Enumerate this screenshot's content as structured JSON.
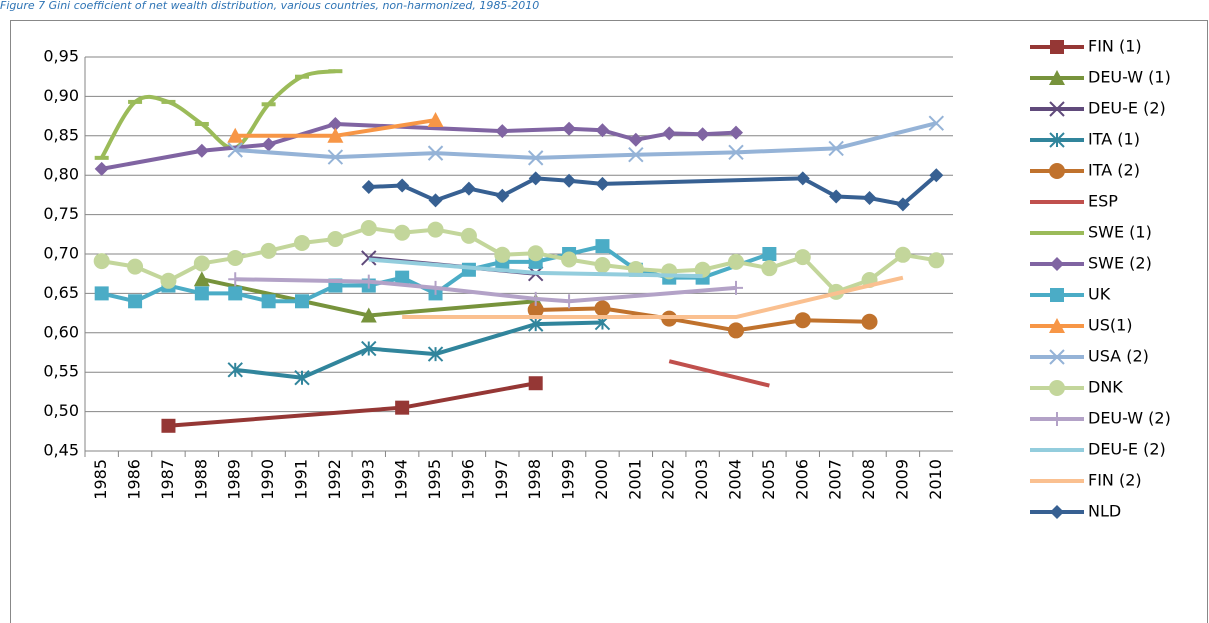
{
  "chart_data": {
    "type": "line",
    "title": "Figure 7 Gini coefficient of net wealth distribution, various countries, non-harmonized, 1985-2010",
    "xlim": [
      1984.5,
      2010.5
    ],
    "xticks": [
      1985,
      1986,
      1987,
      1988,
      1989,
      1990,
      1991,
      1992,
      1993,
      1994,
      1995,
      1996,
      1997,
      1998,
      1999,
      2000,
      2001,
      2002,
      2003,
      2004,
      2005,
      2006,
      2007,
      2008,
      2009,
      2010
    ],
    "ylim": [
      0.45,
      0.95
    ],
    "yticks": [
      {
        "value": 0.45,
        "label": "0,45"
      },
      {
        "value": 0.5,
        "label": "0,50"
      },
      {
        "value": 0.55,
        "label": "0,55"
      },
      {
        "value": 0.6,
        "label": "0,60"
      },
      {
        "value": 0.65,
        "label": "0,65"
      },
      {
        "value": 0.7,
        "label": "0,70"
      },
      {
        "value": 0.75,
        "label": "0,75"
      },
      {
        "value": 0.8,
        "label": "0,80"
      },
      {
        "value": 0.85,
        "label": "0,85"
      },
      {
        "value": 0.9,
        "label": "0,90"
      },
      {
        "value": 0.95,
        "label": "0,95"
      }
    ],
    "grid": true,
    "legend": "right",
    "series": [
      {
        "name": "FIN (1)",
        "color": "#953735",
        "marker": "square",
        "x": [
          1987,
          1994,
          1998
        ],
        "values": [
          0.482,
          0.505,
          0.536
        ]
      },
      {
        "name": "DEU-W (1)",
        "color": "#77933c",
        "marker": "triangle",
        "x": [
          1988,
          1993,
          1998
        ],
        "values": [
          0.668,
          0.622,
          0.64
        ]
      },
      {
        "name": "DEU-E (2)",
        "color": "#604a7b",
        "marker": "x",
        "x": [
          1993,
          1998
        ],
        "values": [
          0.695,
          0.675
        ]
      },
      {
        "name": "ITA (1)",
        "color": "#31859c",
        "marker": "star",
        "x": [
          1989,
          1991,
          1993,
          1995,
          1998,
          2000
        ],
        "values": [
          0.553,
          0.543,
          0.58,
          0.573,
          0.611,
          0.613
        ]
      },
      {
        "name": "ITA (2)",
        "color": "#c0722d",
        "marker": "circle",
        "x": [
          1998,
          2000,
          2002,
          2004,
          2006,
          2008
        ],
        "values": [
          0.629,
          0.631,
          0.618,
          0.603,
          0.616,
          0.614
        ]
      },
      {
        "name": "ESP",
        "color": "#c0504d",
        "marker": "none",
        "x": [
          2002,
          2005
        ],
        "values": [
          0.564,
          0.533
        ]
      },
      {
        "name": "SWE (1)",
        "color": "#9bbb59",
        "marker": "dash",
        "smooth": true,
        "x": [
          1985,
          1986,
          1987,
          1988,
          1989,
          1990,
          1991,
          1992
        ],
        "values": [
          0.822,
          0.893,
          0.893,
          0.865,
          0.835,
          0.89,
          0.925,
          0.932
        ]
      },
      {
        "name": "SWE (2)",
        "color": "#8064a2",
        "marker": "diamond",
        "x": [
          1985,
          1988,
          1990,
          1992,
          1997,
          1999,
          2000,
          2001,
          2002,
          2003,
          2004
        ],
        "values": [
          0.808,
          0.831,
          0.839,
          0.865,
          0.856,
          0.859,
          0.857,
          0.845,
          0.853,
          0.852,
          0.854
        ]
      },
      {
        "name": "UK",
        "color": "#4bacc6",
        "marker": "square",
        "x": [
          1985,
          1986,
          1987,
          1988,
          1989,
          1990,
          1991,
          1992,
          1993,
          1994,
          1995,
          1996,
          1997,
          1998,
          1999,
          2000,
          2001,
          2002,
          2003,
          2005
        ],
        "values": [
          0.65,
          0.64,
          0.66,
          0.65,
          0.65,
          0.64,
          0.64,
          0.66,
          0.66,
          0.67,
          0.65,
          0.68,
          0.69,
          0.69,
          0.7,
          0.71,
          0.68,
          0.67,
          0.67,
          0.7
        ]
      },
      {
        "name": "US(1)",
        "color": "#f79646",
        "marker": "triangle",
        "x": [
          1989,
          1992,
          1995
        ],
        "values": [
          0.85,
          0.85,
          0.87
        ]
      },
      {
        "name": "USA (2)",
        "color": "#95b3d7",
        "marker": "x",
        "x": [
          1989,
          1992,
          1995,
          1998,
          2001,
          2004,
          2007,
          2010
        ],
        "values": [
          0.832,
          0.823,
          0.828,
          0.822,
          0.826,
          0.829,
          0.834,
          0.866
        ]
      },
      {
        "name": "DNK",
        "color": "#c3d69b",
        "marker": "circle",
        "x": [
          1985,
          1986,
          1987,
          1988,
          1989,
          1990,
          1991,
          1992,
          1993,
          1994,
          1995,
          1996,
          1997,
          1998,
          1999,
          2000,
          2001,
          2002,
          2003,
          2004,
          2005,
          2006,
          2007,
          2008,
          2009,
          2010
        ],
        "values": [
          0.691,
          0.684,
          0.666,
          0.688,
          0.695,
          0.704,
          0.714,
          0.719,
          0.733,
          0.727,
          0.731,
          0.723,
          0.699,
          0.701,
          0.693,
          0.686,
          0.681,
          0.678,
          0.68,
          0.69,
          0.682,
          0.696,
          0.652,
          0.667,
          0.699,
          0.692
        ]
      },
      {
        "name": "DEU-W (2)",
        "color": "#b3a2c7",
        "marker": "plus",
        "x": [
          1989,
          1993,
          1995,
          1998,
          1999,
          2004
        ],
        "values": [
          0.668,
          0.665,
          0.657,
          0.643,
          0.64,
          0.657
        ]
      },
      {
        "name": "DEU-E (2)",
        "color": "#93cddd",
        "marker": "none",
        "x": [
          1993,
          1998,
          2003
        ],
        "values": [
          0.693,
          0.676,
          0.672
        ]
      },
      {
        "name": "FIN (2)",
        "color": "#fac090",
        "marker": "none",
        "x": [
          1994,
          2004,
          2009
        ],
        "values": [
          0.62,
          0.62,
          0.67
        ]
      },
      {
        "name": "NLD",
        "color": "#376092",
        "marker": "diamond",
        "x": [
          1993,
          1994,
          1995,
          1996,
          1997,
          1998,
          1999,
          2000,
          2006,
          2007,
          2008,
          2009,
          2010
        ],
        "values": [
          0.785,
          0.787,
          0.768,
          0.783,
          0.774,
          0.796,
          0.793,
          0.789,
          0.796,
          0.773,
          0.771,
          0.763,
          0.8
        ]
      }
    ]
  }
}
